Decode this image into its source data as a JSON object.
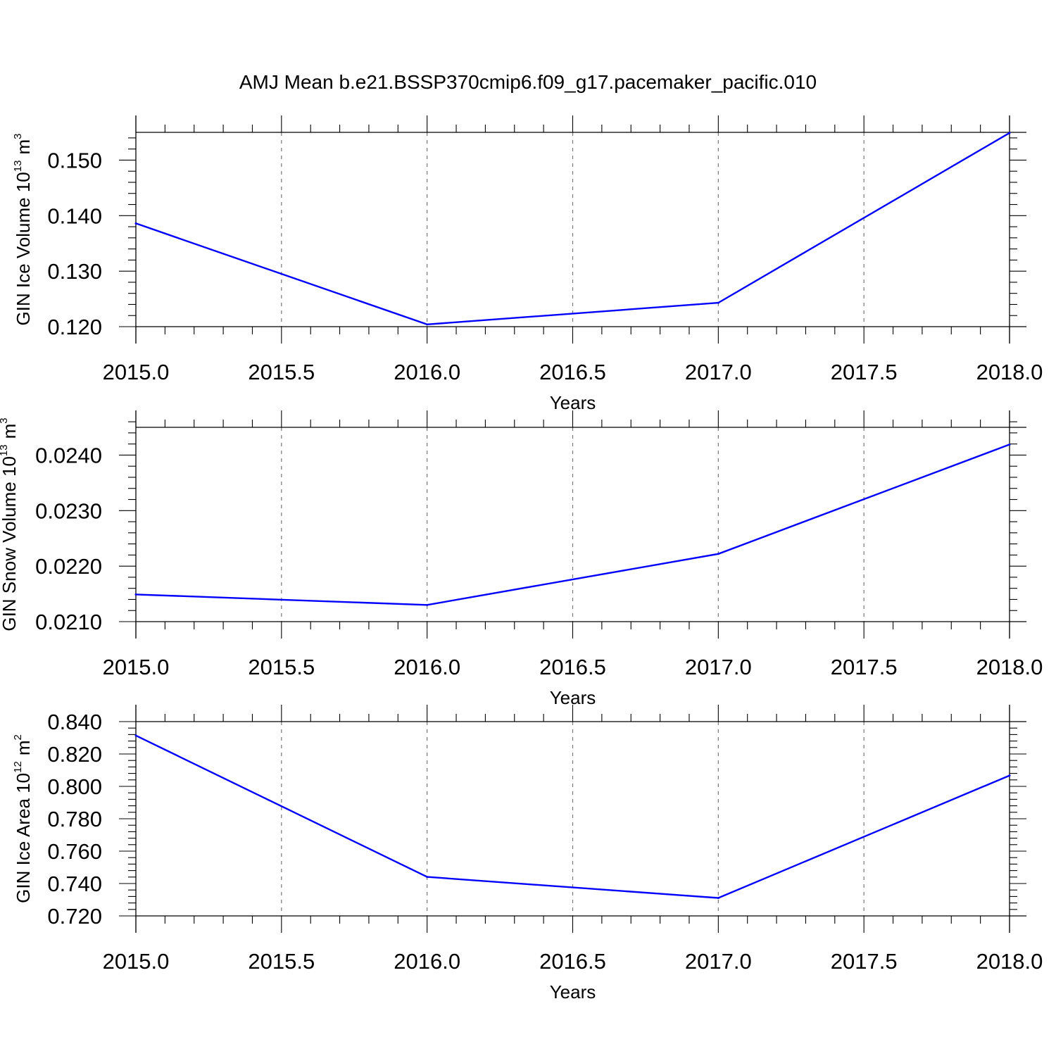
{
  "title": "AMJ Mean b.e21.BSSP370cmip6.f09_g17.pacemaker_pacific.010",
  "colors": {
    "line": "#0000ff",
    "grid": "#777777",
    "frame": "#000000"
  },
  "chart_data": [
    {
      "type": "line",
      "xlabel": "Years",
      "ylabel": "GIN Ice Volume 10",
      "ylabel_exp": "13",
      "ylabel_unit": "m",
      "ylabel_unit_exp": "3",
      "x": [
        2015,
        2016,
        2017,
        2018
      ],
      "values": [
        0.1386,
        0.1204,
        0.1243,
        0.1549
      ],
      "xlim": [
        2015,
        2018
      ],
      "ylim": [
        0.12,
        0.155
      ],
      "xticks": [
        "2015.0",
        "2015.5",
        "2016.0",
        "2016.5",
        "2017.0",
        "2017.5",
        "2018.0"
      ],
      "yticks": [
        "0.120",
        "0.130",
        "0.140",
        "0.150"
      ],
      "grid": "vertical-dashed"
    },
    {
      "type": "line",
      "xlabel": "Years",
      "ylabel": "GIN Snow Volume 10",
      "ylabel_exp": "13",
      "ylabel_unit": "m",
      "ylabel_unit_exp": "3",
      "x": [
        2015,
        2016,
        2017,
        2018
      ],
      "values": [
        0.02149,
        0.0213,
        0.02222,
        0.02419
      ],
      "xlim": [
        2015,
        2018
      ],
      "ylim": [
        0.021,
        0.0245
      ],
      "xticks": [
        "2015.0",
        "2015.5",
        "2016.0",
        "2016.5",
        "2017.0",
        "2017.5",
        "2018.0"
      ],
      "yticks": [
        "0.0210",
        "0.0220",
        "0.0230",
        "0.0240"
      ],
      "grid": "vertical-dashed"
    },
    {
      "type": "line",
      "xlabel": "Years",
      "ylabel": "GIN Ice Area 10",
      "ylabel_exp": "12",
      "ylabel_unit": "m",
      "ylabel_unit_exp": "2",
      "x": [
        2015,
        2016,
        2017,
        2018
      ],
      "values": [
        0.8314,
        0.7441,
        0.7311,
        0.8067
      ],
      "xlim": [
        2015,
        2018
      ],
      "ylim": [
        0.72,
        0.84
      ],
      "xticks": [
        "2015.0",
        "2015.5",
        "2016.0",
        "2016.5",
        "2017.0",
        "2017.5",
        "2018.0"
      ],
      "yticks": [
        "0.720",
        "0.740",
        "0.760",
        "0.780",
        "0.800",
        "0.820",
        "0.840"
      ],
      "grid": "vertical-dashed"
    }
  ]
}
